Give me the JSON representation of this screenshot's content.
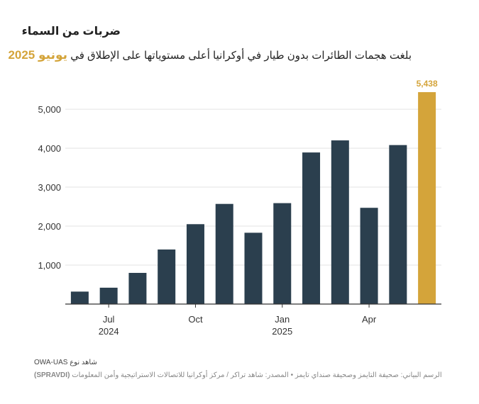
{
  "header": {
    "title": "ضربات من السماء",
    "subtitle_text": "بلغت هجمات الطائرات بدون طيار في أوكرانيا أعلى مستوياتها على الإطلاق في",
    "subtitle_highlight": "يونيو 2025"
  },
  "footer": {
    "line1": "OWA-UAS شاهد نوع",
    "line2_credit": "الرسم البياني: صحيفة التايمز وصحيفة صنداي تايمز",
    "line2_separator": "•",
    "line2_source": "المصدر: شاهد تراكر / مركز أوكرانيا للاتصالات الاستراتيجية وأمن المعلومات",
    "line2_tag": "(SPRAVDI)"
  },
  "colors": {
    "bar": "#2b3f4e",
    "highlight": "#d4a43a",
    "grid": "#e3e3e3",
    "axis": "#333333"
  },
  "chart_data": {
    "type": "bar",
    "x": [
      "2024-06",
      "2024-07",
      "2024-08",
      "2024-09",
      "2024-10",
      "2024-11",
      "2024-12",
      "2025-01",
      "2025-02",
      "2025-03",
      "2025-04",
      "2025-05",
      "2025-06"
    ],
    "values": [
      320,
      420,
      800,
      1400,
      2050,
      2570,
      1830,
      2590,
      3890,
      4200,
      2470,
      4080,
      5438
    ],
    "highlight_index": 12,
    "data_labels": [
      {
        "index": 12,
        "text": "5,438"
      }
    ],
    "x_tick_labels": [
      {
        "index": 1,
        "month": "Jul",
        "year": "2024"
      },
      {
        "index": 4,
        "month": "Oct",
        "year": ""
      },
      {
        "index": 7,
        "month": "Jan",
        "year": "2025"
      },
      {
        "index": 10,
        "month": "Apr",
        "year": ""
      }
    ],
    "y_ticks": [
      {
        "value": 1000,
        "label": "1,000"
      },
      {
        "value": 2000,
        "label": "2,000"
      },
      {
        "value": 3000,
        "label": "3,000"
      },
      {
        "value": 4000,
        "label": "4,000"
      },
      {
        "value": 5000,
        "label": "5,000"
      }
    ],
    "ylim": [
      0,
      5438
    ],
    "grid": true,
    "legend": "none"
  }
}
